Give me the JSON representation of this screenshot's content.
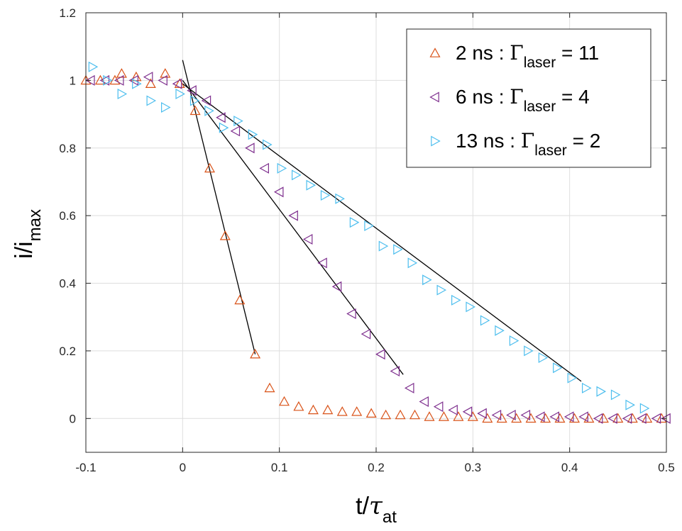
{
  "chart_data": {
    "type": "scatter",
    "title": "",
    "xlabel": {
      "base": "t/",
      "symbol": "τ",
      "sub": "at"
    },
    "ylabel": {
      "base": "i/i",
      "sub": "max"
    },
    "xlim": [
      -0.1,
      0.5
    ],
    "ylim": [
      -0.1,
      1.2
    ],
    "xticks": [
      "-0.1",
      "0",
      "0.1",
      "0.2",
      "0.3",
      "0.4",
      "0.5"
    ],
    "yticks": [
      "0",
      "0.2",
      "0.4",
      "0.6",
      "0.8",
      "1",
      "1.2"
    ],
    "grid": true,
    "legend_position": "top-right",
    "series": [
      {
        "name": "2 ns : Γlaser = 11",
        "legend": {
          "pre": "2 ns : ",
          "gamma": "Γ",
          "sub": "laser",
          "post": " = 11"
        },
        "marker": "triangle-up",
        "color": "#D95319",
        "points": [
          [
            -0.1,
            1.0
          ],
          [
            -0.085,
            1.0
          ],
          [
            -0.07,
            1.0
          ],
          [
            -0.063,
            1.02
          ],
          [
            -0.048,
            1.01
          ],
          [
            -0.033,
            0.99
          ],
          [
            -0.018,
            1.02
          ],
          [
            -0.003,
            0.99
          ],
          [
            0.013,
            0.91
          ],
          [
            0.028,
            0.74
          ],
          [
            0.044,
            0.54
          ],
          [
            0.059,
            0.35
          ],
          [
            0.075,
            0.19
          ],
          [
            0.09,
            0.09
          ],
          [
            0.105,
            0.05
          ],
          [
            0.12,
            0.035
          ],
          [
            0.135,
            0.025
          ],
          [
            0.15,
            0.025
          ],
          [
            0.165,
            0.02
          ],
          [
            0.18,
            0.02
          ],
          [
            0.195,
            0.015
          ],
          [
            0.21,
            0.01
          ],
          [
            0.225,
            0.01
          ],
          [
            0.24,
            0.01
          ],
          [
            0.255,
            0.005
          ],
          [
            0.27,
            0.005
          ],
          [
            0.285,
            0.005
          ],
          [
            0.3,
            0.005
          ],
          [
            0.315,
            0.0
          ],
          [
            0.33,
            0.0
          ],
          [
            0.345,
            0.0
          ],
          [
            0.36,
            0.0
          ],
          [
            0.375,
            0.0
          ],
          [
            0.39,
            0.0
          ],
          [
            0.405,
            0.0
          ],
          [
            0.42,
            0.0
          ],
          [
            0.435,
            0.0
          ],
          [
            0.45,
            0.0
          ],
          [
            0.465,
            0.0
          ],
          [
            0.48,
            0.0
          ],
          [
            0.495,
            0.0
          ]
        ]
      },
      {
        "name": "6 ns : Γlaser = 4",
        "legend": {
          "pre": "6 ns : ",
          "gamma": "Γ",
          "sub": "laser",
          "post": " = 4"
        },
        "marker": "triangle-left",
        "color": "#7E2F8E",
        "points": [
          [
            -0.095,
            1.0
          ],
          [
            -0.08,
            1.0
          ],
          [
            -0.065,
            1.0
          ],
          [
            -0.05,
            1.0
          ],
          [
            -0.035,
            1.01
          ],
          [
            -0.02,
            1.0
          ],
          [
            -0.005,
            0.99
          ],
          [
            0.01,
            0.97
          ],
          [
            0.025,
            0.94
          ],
          [
            0.04,
            0.89
          ],
          [
            0.055,
            0.85
          ],
          [
            0.07,
            0.8
          ],
          [
            0.085,
            0.74
          ],
          [
            0.1,
            0.67
          ],
          [
            0.115,
            0.6
          ],
          [
            0.13,
            0.53
          ],
          [
            0.145,
            0.46
          ],
          [
            0.16,
            0.39
          ],
          [
            0.175,
            0.31
          ],
          [
            0.19,
            0.25
          ],
          [
            0.205,
            0.19
          ],
          [
            0.22,
            0.14
          ],
          [
            0.235,
            0.09
          ],
          [
            0.25,
            0.05
          ],
          [
            0.265,
            0.035
          ],
          [
            0.28,
            0.025
          ],
          [
            0.295,
            0.02
          ],
          [
            0.31,
            0.015
          ],
          [
            0.325,
            0.01
          ],
          [
            0.34,
            0.01
          ],
          [
            0.355,
            0.01
          ],
          [
            0.37,
            0.005
          ],
          [
            0.385,
            0.005
          ],
          [
            0.4,
            0.005
          ],
          [
            0.415,
            0.005
          ],
          [
            0.43,
            0.0
          ],
          [
            0.445,
            0.0
          ],
          [
            0.46,
            0.0
          ],
          [
            0.475,
            0.0
          ],
          [
            0.49,
            0.0
          ],
          [
            0.5,
            0.0
          ]
        ]
      },
      {
        "name": "13 ns : Γlaser = 2",
        "legend": {
          "pre": "13 ns : ",
          "gamma": "Γ",
          "sub": "laser",
          "post": " = 2"
        },
        "marker": "triangle-right",
        "color": "#4DBEEE",
        "points": [
          [
            -0.093,
            1.04
          ],
          [
            -0.078,
            1.0
          ],
          [
            -0.063,
            0.96
          ],
          [
            -0.048,
            0.99
          ],
          [
            -0.033,
            0.94
          ],
          [
            -0.018,
            0.92
          ],
          [
            -0.003,
            0.96
          ],
          [
            0.012,
            0.94
          ],
          [
            0.027,
            0.91
          ],
          [
            0.042,
            0.86
          ],
          [
            0.057,
            0.88
          ],
          [
            0.072,
            0.84
          ],
          [
            0.087,
            0.81
          ],
          [
            0.102,
            0.74
          ],
          [
            0.117,
            0.72
          ],
          [
            0.132,
            0.69
          ],
          [
            0.147,
            0.66
          ],
          [
            0.162,
            0.65
          ],
          [
            0.177,
            0.58
          ],
          [
            0.192,
            0.57
          ],
          [
            0.207,
            0.51
          ],
          [
            0.222,
            0.5
          ],
          [
            0.237,
            0.46
          ],
          [
            0.252,
            0.41
          ],
          [
            0.267,
            0.38
          ],
          [
            0.282,
            0.35
          ],
          [
            0.297,
            0.33
          ],
          [
            0.312,
            0.29
          ],
          [
            0.327,
            0.26
          ],
          [
            0.342,
            0.23
          ],
          [
            0.357,
            0.2
          ],
          [
            0.372,
            0.18
          ],
          [
            0.387,
            0.15
          ],
          [
            0.402,
            0.12
          ],
          [
            0.417,
            0.09
          ],
          [
            0.432,
            0.08
          ],
          [
            0.447,
            0.07
          ],
          [
            0.462,
            0.04
          ],
          [
            0.477,
            0.03
          ]
        ]
      }
    ],
    "fit_lines": [
      {
        "x": [
          0.0,
          0.075
        ],
        "y": [
          1.06,
          0.19
        ]
      },
      {
        "x": [
          0.0,
          0.228
        ],
        "y": [
          1.0,
          0.13
        ]
      },
      {
        "x": [
          0.0,
          0.412
        ],
        "y": [
          0.99,
          0.11
        ]
      }
    ]
  }
}
